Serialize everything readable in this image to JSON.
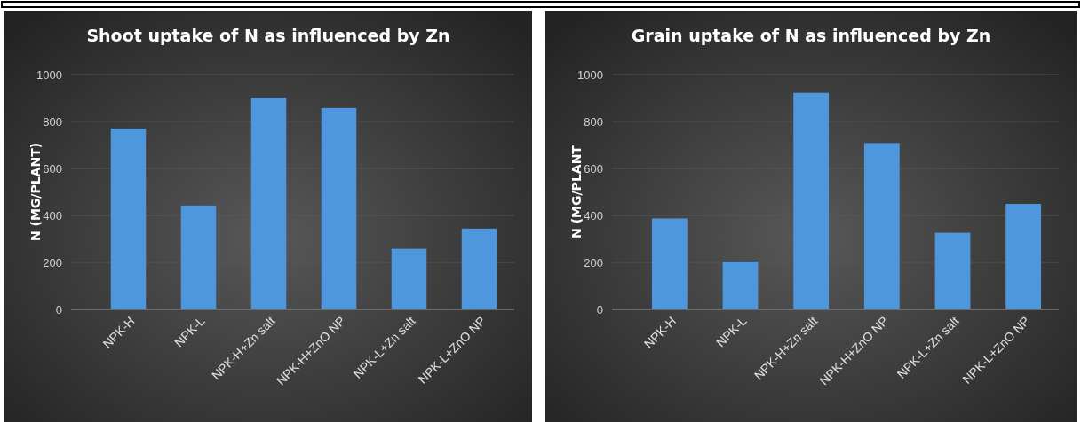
{
  "chart_data": [
    {
      "type": "bar",
      "title": "Shoot uptake of N as influenced by Zn",
      "ylabel": "N (MG/PLANT)",
      "categories": [
        "NPK-H",
        "NPK-L",
        "NPK-H+Zn salt",
        "NPK-H+ZnO NP",
        "NPK-L+Zn salt",
        "NPK-L+ZnO NP"
      ],
      "values": [
        770,
        442,
        901,
        857,
        258,
        344
      ],
      "color": "#4f97dc",
      "ylim": [
        0,
        1000
      ],
      "yticks": [
        0,
        200,
        400,
        600,
        800,
        1000
      ],
      "grid": "y"
    },
    {
      "type": "bar",
      "title": "Grain uptake of N as influenced by Zn",
      "ylabel": "N (MG/PLANT",
      "categories": [
        "NPK-H",
        "NPK-L",
        "NPK-H+Zn salt",
        "NPK-H+ZnO NP",
        "NPK-L+Zn salt",
        "NPK-L+ZnO NP"
      ],
      "values": [
        387,
        204,
        922,
        708,
        326,
        449
      ],
      "color": "#4f97dc",
      "ylim": [
        0,
        1000
      ],
      "yticks": [
        0,
        200,
        400,
        600,
        800,
        1000
      ],
      "grid": "y"
    }
  ]
}
